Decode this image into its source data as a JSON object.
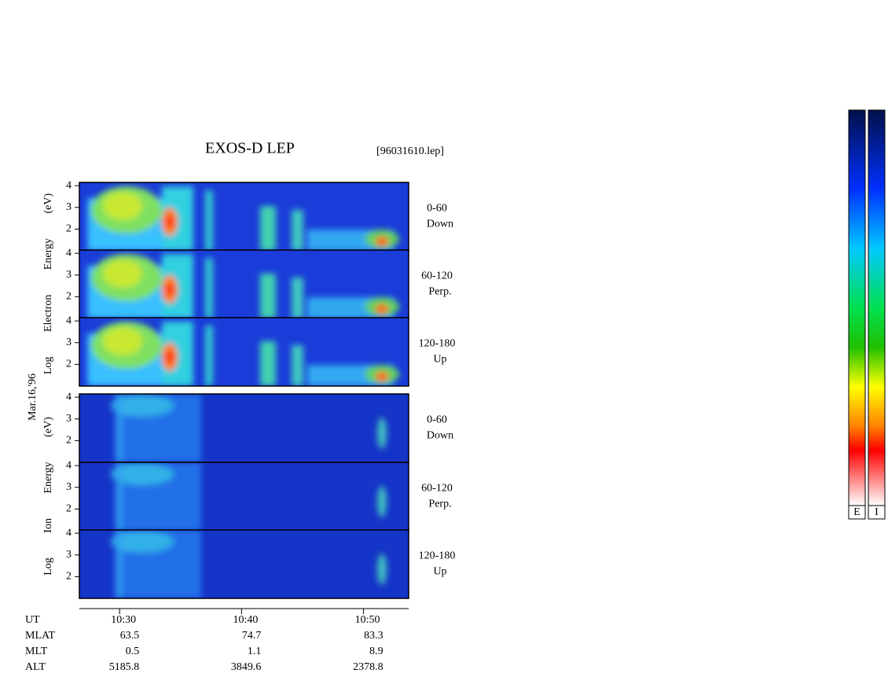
{
  "title": "EXOS-D LEP",
  "file": "[96031610.lep]",
  "date": "Mar.16,'96",
  "species_labels": [
    "Log Electron Energy (eV)",
    "Log Ion Energy (eV)"
  ],
  "ylim": [
    1,
    4.15
  ],
  "yticks": [
    2,
    3,
    4
  ],
  "panels": [
    {
      "angle": "0-60",
      "direction": "Down"
    },
    {
      "angle": "60-120",
      "direction": "Perp."
    },
    {
      "angle": "120-180",
      "direction": "Up"
    },
    {
      "angle": "0-60",
      "direction": "Down"
    },
    {
      "angle": "60-120",
      "direction": "Perp."
    },
    {
      "angle": "120-180",
      "direction": "Up"
    }
  ],
  "xlim": [
    26.7,
    53.7
  ],
  "xticks": [
    {
      "value": 30,
      "label": "10:30"
    },
    {
      "value": 40,
      "label": "10:40"
    },
    {
      "value": 50,
      "label": "10:50"
    }
  ],
  "ephemeris": [
    {
      "name": "UT"
    },
    {
      "name": "MLAT",
      "values": [
        63.5,
        74.7,
        83.3
      ]
    },
    {
      "name": "MLT",
      "values": [
        0.5,
        1.1,
        8.9
      ]
    },
    {
      "name": "ALT",
      "values": [
        5185.8,
        3849.6,
        2378.8
      ]
    }
  ],
  "colorbars": [
    "E",
    "I"
  ]
}
